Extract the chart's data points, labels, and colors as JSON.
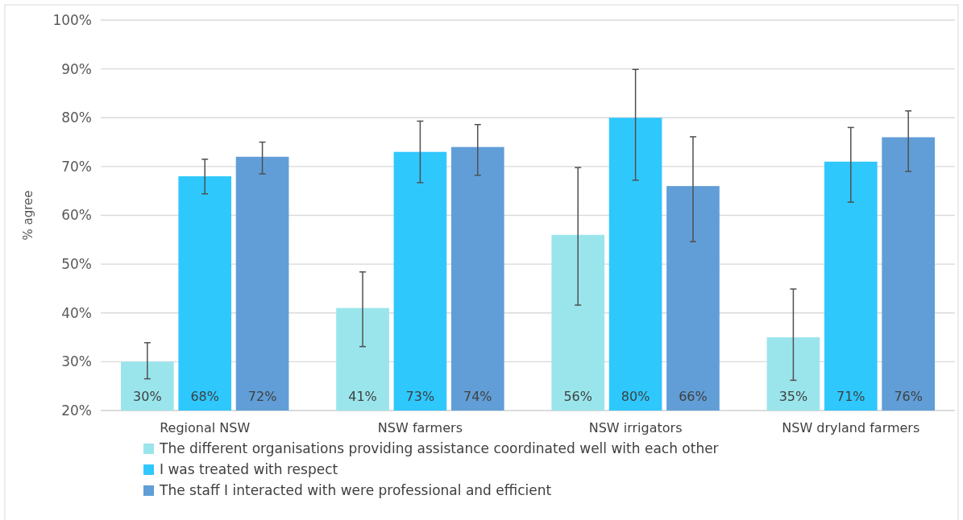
{
  "chart_data": {
    "type": "bar",
    "ylabel": "% agree",
    "categories": [
      "Regional NSW",
      "NSW farmers",
      "NSW irrigators",
      "NSW dryland farmers"
    ],
    "series": [
      {
        "name": "The different organisations providing assistance coordinated well with each other",
        "color": "#9ae5ec",
        "values": [
          30,
          41,
          56,
          35
        ],
        "value_labels": [
          "30%",
          "41%",
          "56%",
          "35%"
        ],
        "errors": [
          [
            26.5,
            33.9
          ],
          [
            33.1,
            48.4
          ],
          [
            41.6,
            69.8
          ],
          [
            26.2,
            44.9
          ]
        ]
      },
      {
        "name": "I was treated with respect",
        "color": "#2fc8fd",
        "values": [
          68,
          73,
          80,
          71
        ],
        "value_labels": [
          "68%",
          "73%",
          "80%",
          "71%"
        ],
        "errors": [
          [
            64.4,
            71.5
          ],
          [
            66.7,
            79.3
          ],
          [
            67.2,
            89.9
          ],
          [
            62.7,
            78.0
          ]
        ]
      },
      {
        "name": "The staff I interacted with were professional and efficient",
        "color": "#619ed7",
        "values": [
          72,
          74,
          66,
          76
        ],
        "value_labels": [
          "72%",
          "74%",
          "66%",
          "76%"
        ],
        "errors": [
          [
            68.5,
            75.0
          ],
          [
            68.2,
            78.6
          ],
          [
            54.6,
            76.1
          ],
          [
            69.0,
            81.4
          ]
        ]
      }
    ],
    "ylim": [
      20,
      100
    ],
    "yticks": [
      {
        "value": 20,
        "label": "20%"
      },
      {
        "value": 30,
        "label": "30%"
      },
      {
        "value": 40,
        "label": "40%"
      },
      {
        "value": 50,
        "label": "50%"
      },
      {
        "value": 60,
        "label": "60%"
      },
      {
        "value": 70,
        "label": "70%"
      },
      {
        "value": 80,
        "label": "80%"
      },
      {
        "value": 90,
        "label": "90%"
      },
      {
        "value": 100,
        "label": "100%"
      }
    ],
    "grid": "y",
    "legend": "bottom"
  }
}
